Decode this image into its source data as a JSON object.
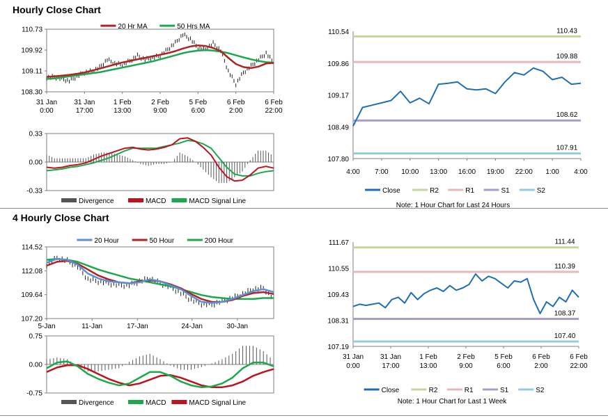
{
  "sections": [
    {
      "title": "Hourly Close Chart"
    },
    {
      "title": "4 Hourly Close Chart"
    }
  ],
  "chart_data": [
    {
      "id": "hourly_price",
      "type": "line",
      "ylim": [
        108.3,
        110.73
      ],
      "yticks": [
        "110.73",
        "109.92",
        "109.11",
        "108.30"
      ],
      "xticks": [
        [
          "31 Jan",
          "0:00"
        ],
        [
          "31 Jan",
          "17:00"
        ],
        [
          "1 Feb",
          "13:00"
        ],
        [
          "2 Feb",
          "9:00"
        ],
        [
          "5 Feb",
          "6:00"
        ],
        [
          "6 Feb",
          "2:00"
        ],
        [
          "6 Feb",
          "22:00"
        ]
      ],
      "legend": [
        "20 Hr MA",
        "50 Hrs MA"
      ],
      "colors": {
        "price": "#1f1f1f",
        "ma20": "#b22222",
        "ma50": "#1aa84a"
      },
      "series": [
        {
          "name": "20 Hr MA",
          "values": [
            108.88,
            108.9,
            108.93,
            108.96,
            109.0,
            109.05,
            109.12,
            109.2,
            109.28,
            109.36,
            109.44,
            109.5,
            109.56,
            109.62,
            109.68,
            109.74,
            109.8,
            109.88,
            109.98,
            110.06,
            110.1,
            110.08,
            110.0,
            109.88,
            109.62,
            109.38,
            109.26,
            109.22,
            109.28,
            109.4,
            109.42
          ]
        },
        {
          "name": "50 Hrs MA",
          "values": [
            108.8,
            108.82,
            108.86,
            108.9,
            108.94,
            108.98,
            109.02,
            109.06,
            109.12,
            109.18,
            109.24,
            109.3,
            109.36,
            109.42,
            109.48,
            109.56,
            109.64,
            109.72,
            109.8,
            109.86,
            109.9,
            109.92,
            109.9,
            109.86,
            109.8,
            109.72,
            109.64,
            109.56,
            109.5,
            109.45,
            109.43
          ]
        }
      ],
      "price": [
        108.85,
        108.88,
        108.8,
        108.72,
        108.9,
        109.05,
        109.1,
        109.25,
        109.55,
        109.4,
        109.35,
        109.5,
        109.7,
        109.55,
        109.62,
        109.7,
        109.95,
        110.2,
        110.52,
        110.35,
        110.0,
        109.95,
        110.18,
        109.9,
        109.1,
        108.6,
        109.05,
        109.3,
        109.55,
        109.8,
        109.42
      ]
    },
    {
      "id": "hourly_macd",
      "type": "line",
      "ylim": [
        -0.33,
        0.33
      ],
      "yticks": [
        "0.33",
        "0.00",
        "-0.33"
      ],
      "legend": [
        "Divergence",
        "MACD",
        "MACD Signal Line"
      ],
      "colors": {
        "divergence": "#555555",
        "macd": "#c0111f",
        "signal": "#1aa84a"
      },
      "series": [
        {
          "name": "MACD",
          "values": [
            -0.06,
            -0.07,
            -0.06,
            -0.04,
            -0.03,
            -0.01,
            0.03,
            0.07,
            0.1,
            0.13,
            0.16,
            0.17,
            0.15,
            0.14,
            0.15,
            0.17,
            0.2,
            0.27,
            0.28,
            0.24,
            0.17,
            0.08,
            -0.06,
            -0.17,
            -0.22,
            -0.21,
            -0.15,
            -0.07,
            -0.05,
            -0.07
          ]
        },
        {
          "name": "MACD Signal Line",
          "values": [
            -0.1,
            -0.09,
            -0.08,
            -0.06,
            -0.05,
            -0.03,
            -0.01,
            0.02,
            0.05,
            0.09,
            0.13,
            0.16,
            0.16,
            0.16,
            0.16,
            0.18,
            0.2,
            0.22,
            0.25,
            0.24,
            0.21,
            0.16,
            0.05,
            -0.06,
            -0.14,
            -0.16,
            -0.16,
            -0.13,
            -0.11,
            -0.1
          ]
        }
      ]
    },
    {
      "id": "hourly_pivot",
      "type": "line",
      "ylim": [
        107.8,
        110.54
      ],
      "yticks": [
        "110.54",
        "109.86",
        "109.17",
        "108.49",
        "107.80"
      ],
      "xticks": [
        "4:00",
        "7:00",
        "10:00",
        "13:00",
        "16:00",
        "19:00",
        "22:00",
        "1:00",
        "4:00"
      ],
      "levels": [
        {
          "name": "R2",
          "value": 110.43,
          "label": "110.43"
        },
        {
          "name": "R1",
          "value": 109.88,
          "label": "109.88"
        },
        {
          "name": "S1",
          "value": 108.62,
          "label": "108.62"
        },
        {
          "name": "S2",
          "value": 107.91,
          "label": "107.91"
        }
      ],
      "close": [
        108.5,
        108.9,
        108.95,
        109.0,
        109.05,
        109.25,
        109.0,
        109.1,
        108.98,
        109.4,
        109.42,
        109.45,
        109.3,
        109.28,
        109.3,
        109.2,
        109.45,
        109.65,
        109.6,
        109.75,
        109.68,
        109.5,
        109.55,
        109.4,
        109.42
      ],
      "legend": [
        "Close",
        "R2",
        "R1",
        "S1",
        "S2"
      ],
      "colors": {
        "close": "#1f6eb4",
        "R2": "#c3d69b",
        "R1": "#e6b9b8",
        "S1": "#a99bcc",
        "S2": "#93cddd"
      },
      "note": "Note: 1 Hour Chart for Last 24 Hours"
    },
    {
      "id": "four_hourly_price",
      "type": "line",
      "ylim": [
        107.2,
        114.52
      ],
      "yticks": [
        "114.52",
        "112.08",
        "109.64",
        "107.20"
      ],
      "xticks": [
        "5-Jan",
        "11-Jan",
        "17-Jan",
        "24-Jan",
        "30-Jan"
      ],
      "legend": [
        "20 Hour",
        "50 Hour",
        "200 Hour"
      ],
      "colors": {
        "price": "#1f1f1f",
        "ma20": "#5b8fd6",
        "ma50": "#b22222",
        "ma200": "#1aa84a"
      },
      "series": [
        {
          "name": "20 Hour",
          "values": [
            112.9,
            113.3,
            113.2,
            112.7,
            111.8,
            111.3,
            111.0,
            110.9,
            110.8,
            110.9,
            111.2,
            111.0,
            110.6,
            110.2,
            109.5,
            108.9,
            108.8,
            108.9,
            109.2,
            109.6,
            110.0,
            110.2,
            109.9
          ]
        },
        {
          "name": "50 Hour",
          "values": [
            112.6,
            113.0,
            113.1,
            112.8,
            112.2,
            111.6,
            111.2,
            110.9,
            110.8,
            111.0,
            111.1,
            111.0,
            110.7,
            110.3,
            109.7,
            109.2,
            108.9,
            108.9,
            109.1,
            109.5,
            109.8,
            109.9,
            109.7
          ]
        },
        {
          "name": "200 Hour",
          "values": [
            113.2,
            113.3,
            113.2,
            113.0,
            112.6,
            112.2,
            111.9,
            111.6,
            111.3,
            111.1,
            110.9,
            110.7,
            110.5,
            110.2,
            109.9,
            109.6,
            109.4,
            109.3,
            109.2,
            109.2,
            109.2,
            109.3,
            109.3
          ]
        }
      ],
      "price": [
        112.7,
        113.4,
        113.1,
        112.5,
        111.2,
        111.0,
        110.8,
        110.6,
        110.6,
        111.0,
        111.3,
        110.8,
        110.4,
        109.8,
        109.1,
        108.7,
        108.6,
        109.0,
        109.3,
        109.7,
        110.2,
        110.3,
        109.2
      ]
    },
    {
      "id": "four_hourly_macd",
      "type": "line",
      "ylim": [
        -0.75,
        0.75
      ],
      "yticks": [
        "0.75",
        "0.00",
        "-0.75"
      ],
      "legend": [
        "Divergence",
        "MACD",
        "MACD Signal Line"
      ],
      "colors": {
        "divergence": "#555555",
        "macd": "#1aa84a",
        "signal": "#c0111f"
      },
      "series": [
        {
          "name": "MACD",
          "values": [
            -0.1,
            0.05,
            0.08,
            -0.05,
            -0.25,
            -0.38,
            -0.48,
            -0.55,
            -0.5,
            -0.35,
            -0.2,
            -0.2,
            -0.3,
            -0.45,
            -0.55,
            -0.6,
            -0.58,
            -0.5,
            -0.35,
            -0.1,
            0.05,
            0.05,
            -0.05
          ]
        },
        {
          "name": "MACD Signal Line",
          "values": [
            -0.2,
            -0.08,
            -0.02,
            -0.02,
            -0.12,
            -0.25,
            -0.38,
            -0.48,
            -0.55,
            -0.5,
            -0.4,
            -0.3,
            -0.28,
            -0.35,
            -0.45,
            -0.55,
            -0.6,
            -0.6,
            -0.55,
            -0.45,
            -0.3,
            -0.2,
            -0.12
          ]
        }
      ]
    },
    {
      "id": "four_hourly_pivot",
      "type": "line",
      "ylim": [
        107.19,
        111.67
      ],
      "yticks": [
        "111.67",
        "110.55",
        "109.43",
        "108.31",
        "107.19"
      ],
      "xticks": [
        [
          "31 Jan",
          "0:00"
        ],
        [
          "31 Jan",
          "17:00"
        ],
        [
          "1 Feb",
          "13:00"
        ],
        [
          "2 Feb",
          "9:00"
        ],
        [
          "5 Feb",
          "6:00"
        ],
        [
          "6 Feb",
          "2:00"
        ],
        [
          "6 Feb",
          "22:00"
        ]
      ],
      "levels": [
        {
          "name": "R2",
          "value": 111.44,
          "label": "111.44"
        },
        {
          "name": "R1",
          "value": 110.39,
          "label": "110.39"
        },
        {
          "name": "S1",
          "value": 108.37,
          "label": "108.37"
        },
        {
          "name": "S2",
          "value": 107.4,
          "label": "107.40"
        }
      ],
      "close": [
        108.9,
        109.0,
        108.95,
        109.0,
        109.05,
        108.85,
        109.2,
        109.3,
        109.05,
        109.5,
        109.2,
        109.45,
        109.6,
        109.7,
        109.55,
        109.8,
        109.6,
        109.7,
        109.85,
        110.3,
        110.0,
        110.2,
        110.1,
        109.9,
        109.7,
        110.0,
        109.95,
        110.1,
        109.2,
        108.6,
        109.1,
        108.9,
        109.3,
        109.1,
        109.6,
        109.3
      ],
      "legend": [
        "Close",
        "R2",
        "R1",
        "S1",
        "S2"
      ],
      "colors": {
        "close": "#1f6eb4",
        "R2": "#c3d69b",
        "R1": "#e6b9b8",
        "S1": "#a99bcc",
        "S2": "#93cddd"
      },
      "note": "Note: 1 Hour Chart for Last 1 Week"
    }
  ]
}
